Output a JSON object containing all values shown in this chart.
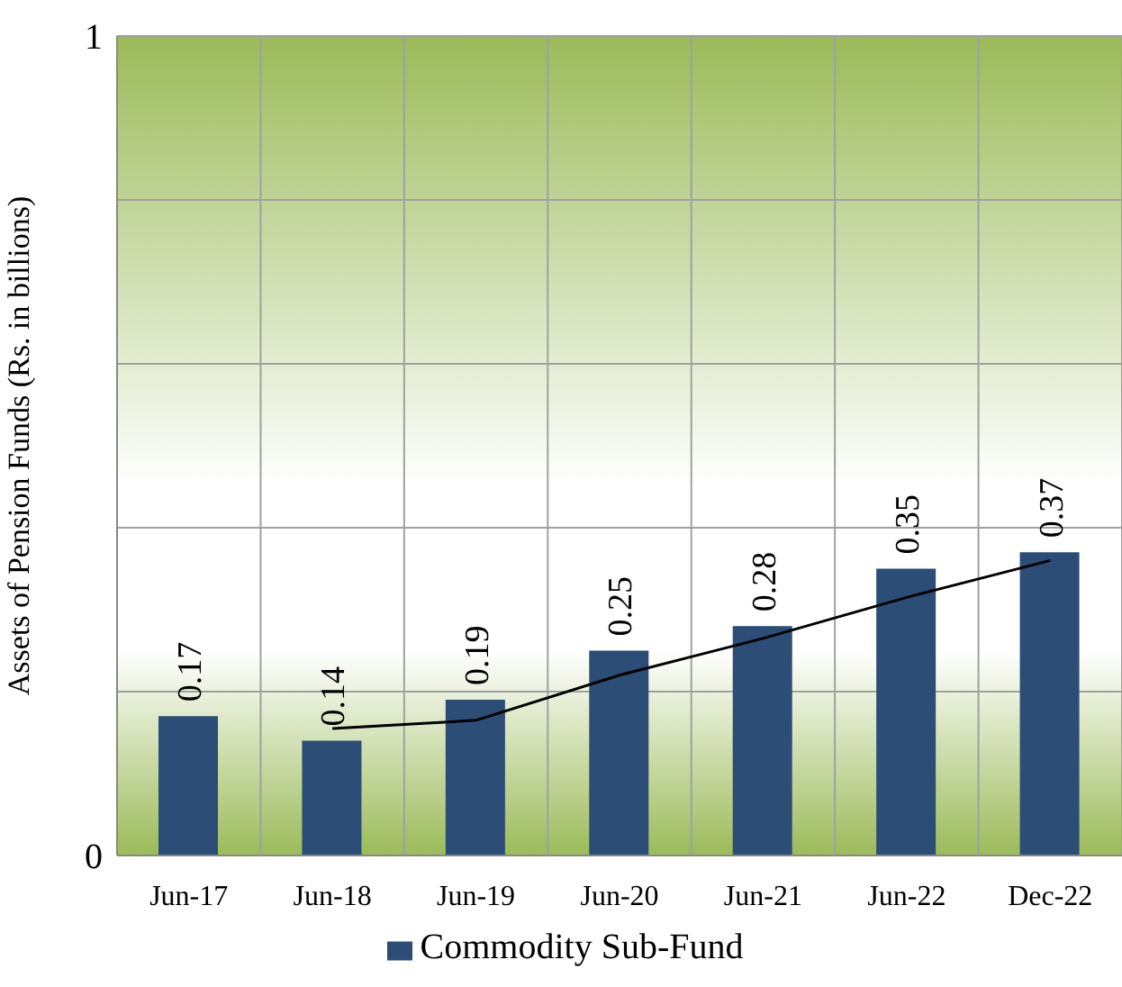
{
  "chart_data": {
    "type": "bar",
    "ylabel": "Assets  of Pension Funds (Rs. in billions)",
    "categories": [
      "Jun-17",
      "Jun-18",
      "Jun-19",
      "Jun-20",
      "Jun-21",
      "Jun-22",
      "Dec-22"
    ],
    "series": [
      {
        "name": "Commodity Sub-Fund",
        "color": "#2c4d75",
        "values": [
          0.17,
          0.14,
          0.19,
          0.25,
          0.28,
          0.35,
          0.37
        ],
        "value_labels": [
          "0.17",
          "0.14",
          "0.19",
          "0.25",
          "0.28",
          "0.35",
          "0.37"
        ]
      },
      {
        "type": "line",
        "color": "#000000",
        "values": [
          null,
          0.155,
          0.165,
          0.22,
          0.265,
          0.315,
          0.36
        ]
      }
    ],
    "ylim": [
      0,
      1
    ],
    "yticks": [
      0,
      {
        "value": 0.2,
        "label": null
      },
      {
        "value": 0.4,
        "label": null
      },
      {
        "value": 0.6,
        "label": null
      },
      {
        "value": 0.8,
        "label": null
      },
      1
    ],
    "grid": true,
    "legend": "bottom",
    "marker": "none"
  }
}
